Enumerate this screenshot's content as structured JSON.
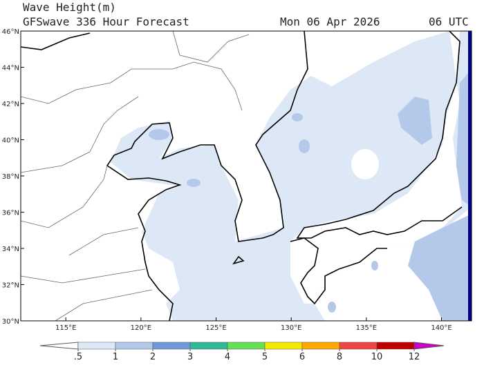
{
  "header": {
    "title": "Wave Height(m)",
    "subtitle": "GFSwave 336 Hour Forecast",
    "date": "Mon 06 Apr 2026",
    "time": "06 UTC"
  },
  "map": {
    "lon_range": [
      112,
      142
    ],
    "lat_range": [
      30,
      46
    ],
    "lon_ticks": [
      {
        "value": 115,
        "label": "115°E"
      },
      {
        "value": 120,
        "label": "120°E"
      },
      {
        "value": 125,
        "label": "125°E"
      },
      {
        "value": 130,
        "label": "130°E"
      },
      {
        "value": 135,
        "label": "135°E"
      },
      {
        "value": 140,
        "label": "140°E"
      }
    ],
    "lat_ticks": [
      {
        "value": 30,
        "label": "30°N"
      },
      {
        "value": 32,
        "label": "32°N"
      },
      {
        "value": 34,
        "label": "34°N"
      },
      {
        "value": 36,
        "label": "36°N"
      },
      {
        "value": 38,
        "label": "38°N"
      },
      {
        "value": 40,
        "label": "40°N"
      },
      {
        "value": 42,
        "label": "42°N"
      },
      {
        "value": 44,
        "label": "44°N"
      },
      {
        "value": 46,
        "label": "46°N"
      }
    ]
  },
  "colorbar": {
    "levels": [
      {
        "value": 0.5,
        "label": ".5"
      },
      1,
      2,
      3,
      4,
      5,
      6,
      8,
      10,
      12
    ],
    "colors": [
      "#ffffff",
      "#dde8f6",
      "#b4c9ea",
      "#6f98d6",
      "#2fb895",
      "#66de55",
      "#f5e900",
      "#ffa800",
      "#ef4545",
      "#c00000",
      "#cc00cc"
    ]
  }
}
